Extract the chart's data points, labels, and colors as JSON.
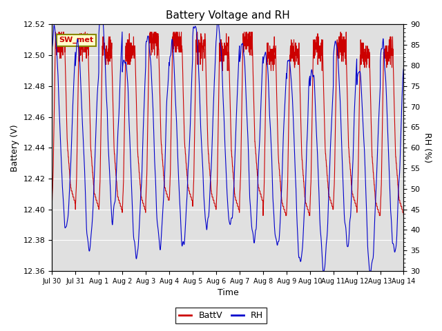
{
  "title": "Battery Voltage and RH",
  "xlabel": "Time",
  "ylabel_left": "Battery (V)",
  "ylabel_right": "RH (%)",
  "annotation": "SW_met",
  "legend_entries": [
    "BattV",
    "RH"
  ],
  "colors": {
    "battv": "#cc0000",
    "rh": "#0000cc",
    "background": "#ffffff",
    "plot_bg": "#e0e0e0",
    "annotation_bg": "#ffffcc",
    "annotation_border": "#888800",
    "grid": "#ffffff"
  },
  "ylim_left": [
    12.36,
    12.52
  ],
  "ylim_right": [
    30,
    90
  ],
  "yticks_left": [
    12.36,
    12.38,
    12.4,
    12.42,
    12.44,
    12.46,
    12.48,
    12.5,
    12.52
  ],
  "yticks_right": [
    30,
    35,
    40,
    45,
    50,
    55,
    60,
    65,
    70,
    75,
    80,
    85,
    90
  ],
  "xtick_labels": [
    "Jul 30",
    "Jul 31",
    "Aug 1",
    "Aug 2",
    "Aug 3",
    "Aug 4",
    "Aug 5",
    "Aug 6",
    "Aug 7",
    "Aug 8",
    "Aug 9",
    "Aug 10",
    "Aug 11",
    "Aug 12",
    "Aug 13",
    "Aug 14"
  ],
  "n_days": 15,
  "pts_per_day": 144,
  "seed": 7
}
